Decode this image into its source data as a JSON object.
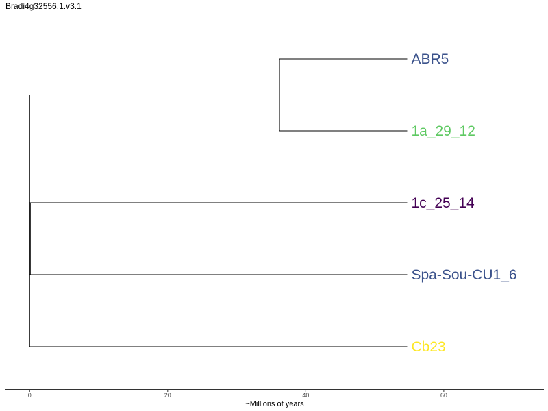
{
  "chart_data": {
    "type": "dendrogram",
    "title": "Bradi4g32556.1.v3.1",
    "xlabel": "~Millions of years",
    "xlim": [
      -3.5,
      74.5
    ],
    "x_ticks": [
      0,
      20,
      40,
      60
    ],
    "tips": [
      {
        "name": "ABR5",
        "x": 54.7,
        "color": "#3b528b"
      },
      {
        "name": "1a_29_12",
        "x": 54.7,
        "color": "#5ec962"
      },
      {
        "name": "1c_25_14",
        "x": 54.7,
        "color": "#440154"
      },
      {
        "name": "Spa-Sou-CU1_6",
        "x": 54.7,
        "color": "#3b528b"
      },
      {
        "name": "Cb23",
        "x": 54.7,
        "color": "#fde725"
      }
    ],
    "nodes": [
      {
        "id": "root",
        "x": 0.0,
        "children": [
          "n1",
          "n2"
        ]
      },
      {
        "id": "n1",
        "x": 0.0,
        "children": [
          "c1",
          "1c_25_14"
        ]
      },
      {
        "id": "c1",
        "x": 36.2,
        "children": [
          "ABR5",
          "1a_29_12"
        ]
      },
      {
        "id": "n2",
        "x": 0.0,
        "children": [
          "n3",
          "Cb23"
        ]
      },
      {
        "id": "n3",
        "x": 0.1,
        "children": [
          "1c_25_14_dummy",
          "Spa-Sou-CU1_6"
        ]
      }
    ],
    "grid": false
  }
}
